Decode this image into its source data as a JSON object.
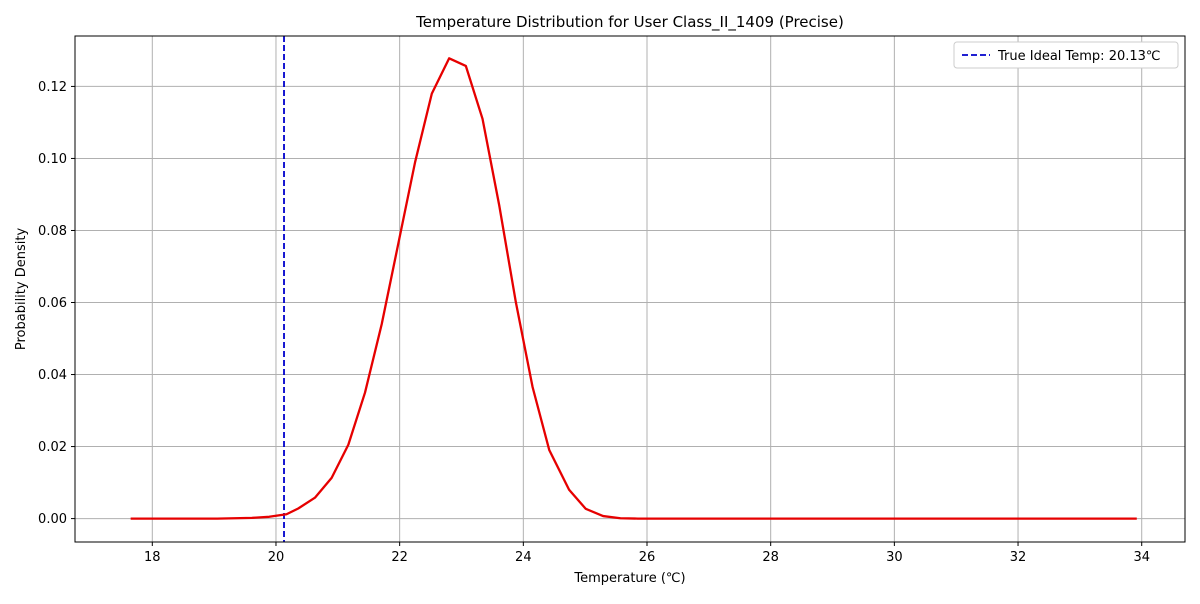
{
  "chart_data": {
    "type": "line",
    "title": "Temperature Distribution for User Class_II_1409 (Precise)",
    "xlabel": "Temperature (℃)",
    "ylabel": "Probability Density",
    "xlim": [
      16.75,
      34.7
    ],
    "ylim": [
      -0.0065,
      0.134
    ],
    "x_ticks": [
      18,
      20,
      22,
      24,
      26,
      28,
      30,
      32,
      34
    ],
    "y_ticks": [
      0.0,
      0.02,
      0.04,
      0.06,
      0.08,
      0.1,
      0.12
    ],
    "grid": true,
    "legend_position": "top-right",
    "series": [
      {
        "color": "#e60000",
        "points": [
          [
            17.65,
            0.0
          ],
          [
            17.93,
            0.0
          ],
          [
            18.21,
            0.0
          ],
          [
            18.49,
            0.0
          ],
          [
            18.77,
            0.0
          ],
          [
            19.05,
            0.0
          ],
          [
            19.33,
            0.0001
          ],
          [
            19.61,
            0.0002
          ],
          [
            19.89,
            0.0005
          ],
          [
            20.17,
            0.0012
          ],
          [
            20.36,
            0.0028
          ],
          [
            20.63,
            0.0058
          ],
          [
            20.9,
            0.0113
          ],
          [
            21.17,
            0.0205
          ],
          [
            21.44,
            0.035
          ],
          [
            21.71,
            0.054
          ],
          [
            21.98,
            0.0765
          ],
          [
            22.25,
            0.099
          ],
          [
            22.52,
            0.118
          ],
          [
            22.8,
            0.1278
          ],
          [
            23.07,
            0.1257
          ],
          [
            23.34,
            0.111
          ],
          [
            23.61,
            0.087
          ],
          [
            23.88,
            0.06
          ],
          [
            24.15,
            0.0365
          ],
          [
            24.42,
            0.019
          ],
          [
            24.74,
            0.008
          ],
          [
            25.01,
            0.0027
          ],
          [
            25.29,
            0.0007
          ],
          [
            25.57,
            0.0001
          ],
          [
            25.85,
            0.0
          ],
          [
            26.4,
            0.0
          ],
          [
            27.0,
            0.0
          ],
          [
            28.0,
            0.0
          ],
          [
            29.0,
            0.0
          ],
          [
            30.0,
            0.0
          ],
          [
            31.0,
            0.0
          ],
          [
            32.0,
            0.0
          ],
          [
            33.0,
            0.0
          ],
          [
            33.92,
            0.0
          ]
        ]
      }
    ],
    "reference_lines": [
      {
        "x": 20.13,
        "label": "True Ideal Temp: 20.13℃",
        "color": "#0000cc",
        "style": "dashed"
      }
    ]
  }
}
